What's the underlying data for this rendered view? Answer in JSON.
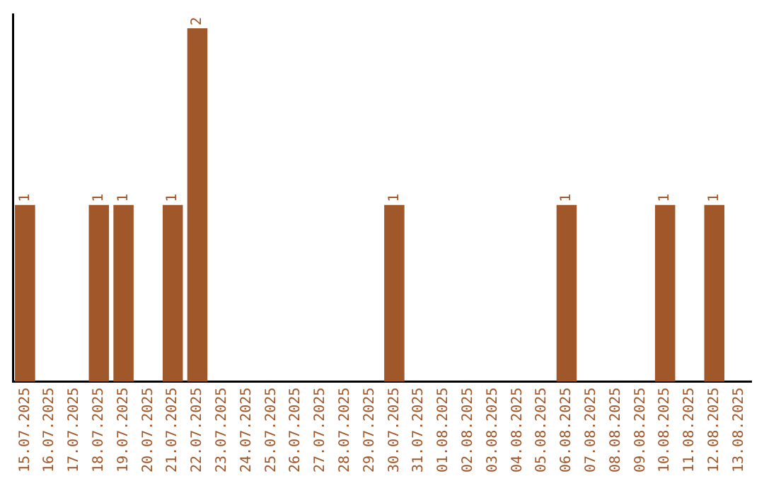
{
  "chart_data": {
    "type": "bar",
    "categories": [
      "15.07.2025",
      "16.07.2025",
      "17.07.2025",
      "18.07.2025",
      "19.07.2025",
      "20.07.2025",
      "21.07.2025",
      "22.07.2025",
      "23.07.2025",
      "24.07.2025",
      "25.07.2025",
      "26.07.2025",
      "27.07.2025",
      "28.07.2025",
      "29.07.2025",
      "30.07.2025",
      "31.07.2025",
      "01.08.2025",
      "02.08.2025",
      "03.08.2025",
      "04.08.2025",
      "05.08.2025",
      "06.08.2025",
      "07.08.2025",
      "08.08.2025",
      "09.08.2025",
      "10.08.2025",
      "11.08.2025",
      "12.08.2025",
      "13.08.2025"
    ],
    "values": [
      1,
      0,
      0,
      1,
      1,
      0,
      1,
      2,
      0,
      0,
      0,
      0,
      0,
      0,
      0,
      1,
      0,
      0,
      0,
      0,
      0,
      0,
      1,
      0,
      0,
      0,
      1,
      0,
      1,
      0
    ],
    "value_labels": [
      "1",
      null,
      null,
      "1",
      "1",
      null,
      "1",
      "2",
      null,
      null,
      null,
      null,
      null,
      null,
      null,
      "1",
      null,
      null,
      null,
      null,
      null,
      null,
      "1",
      null,
      null,
      null,
      "1",
      null,
      "1",
      null
    ],
    "color": "#a0572a",
    "ylim": [
      0,
      2.08
    ],
    "tick_labels": "x",
    "grid": false,
    "legend": false
  }
}
